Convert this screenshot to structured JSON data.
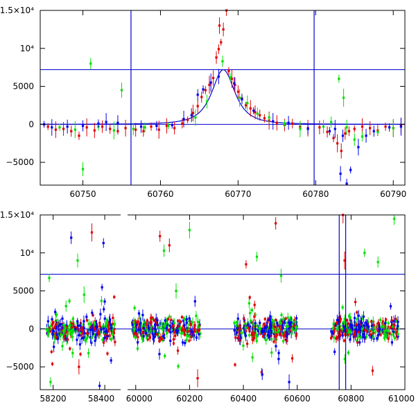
{
  "chart_data": [
    {
      "type": "scatter",
      "title": "",
      "xlabel": "",
      "ylabel": "",
      "xlim": [
        60744.5,
        60791.5
      ],
      "ylim": [
        -8000,
        15000
      ],
      "x_ticks": [
        {
          "value": 60750,
          "label": "60750"
        },
        {
          "value": 60760,
          "label": "60760"
        },
        {
          "value": 60770,
          "label": "60770"
        },
        {
          "value": 60780,
          "label": "60780"
        },
        {
          "value": 60790,
          "label": "60790"
        }
      ],
      "y_ticks": [
        {
          "value": -5000,
          "label": "−5000"
        },
        {
          "value": 0,
          "label": "0"
        },
        {
          "value": 5000,
          "label": "5000"
        },
        {
          "value": 10000,
          "label": "10⁴"
        },
        {
          "value": 15000,
          "label": "1.5×10⁴"
        }
      ],
      "hlines": [
        0,
        7200
      ],
      "vlines": [
        60756.2,
        60779.8
      ],
      "model": {
        "peak_x": 60768.1,
        "peak_y": 7200,
        "width": 2.2
      },
      "series": [
        {
          "name": "red",
          "color": "#e00000",
          "points": [
            [
              60745.5,
              -300
            ],
            [
              60746.5,
              -700
            ],
            [
              60747.5,
              -600
            ],
            [
              60748.5,
              -900
            ],
            [
              60749.5,
              -1500
            ],
            [
              60750.5,
              -400
            ],
            [
              60751.5,
              -800
            ],
            [
              60752.5,
              -300
            ],
            [
              60753.5,
              -600
            ],
            [
              60754.5,
              -900
            ],
            [
              60755.5,
              -500
            ],
            [
              60756.8,
              -700
            ],
            [
              60757.8,
              -900
            ],
            [
              60758.8,
              -300
            ],
            [
              60759.8,
              -700
            ],
            [
              60760.8,
              -200
            ],
            [
              60761.8,
              -500
            ],
            [
              60762.8,
              100
            ],
            [
              60763.5,
              600
            ],
            [
              60764.2,
              1500
            ],
            [
              60764.8,
              2400
            ],
            [
              60765.3,
              3600
            ],
            [
              60765.8,
              4500
            ],
            [
              60766.3,
              5200
            ],
            [
              60766.8,
              6100
            ],
            [
              60767.2,
              8800
            ],
            [
              60767.5,
              9900
            ],
            [
              60767.8,
              10800
            ],
            [
              60767.6,
              13000
            ],
            [
              60768.1,
              12500
            ],
            [
              60768.5,
              15000
            ],
            [
              60768.8,
              7000
            ],
            [
              60769.2,
              6000
            ],
            [
              60769.6,
              5200
            ],
            [
              60770.0,
              4300
            ],
            [
              60770.5,
              3400
            ],
            [
              60771.0,
              2500
            ],
            [
              60771.6,
              2100
            ],
            [
              60772.2,
              1600
            ],
            [
              60772.8,
              1200
            ],
            [
              60773.4,
              800
            ],
            [
              60774.0,
              500
            ],
            [
              60775.0,
              200
            ],
            [
              60776.0,
              -100
            ],
            [
              60777.0,
              100
            ],
            [
              60778.0,
              -300
            ],
            [
              60779.0,
              -500
            ],
            [
              60780.5,
              -400
            ],
            [
              60781.5,
              -1000
            ],
            [
              60782.3,
              -1800
            ],
            [
              60782.8,
              -2500
            ],
            [
              60783.3,
              -3500
            ],
            [
              60783.8,
              -1200
            ],
            [
              60784.3,
              -900
            ],
            [
              60785.0,
              -600
            ],
            [
              60786.0,
              -300
            ],
            [
              60787.0,
              -500
            ],
            [
              60788.0,
              -800
            ],
            [
              60789.0,
              -300
            ],
            [
              60790.0,
              -500
            ],
            [
              60791.0,
              -200
            ]
          ]
        },
        {
          "name": "green",
          "color": "#00e000",
          "points": [
            [
              60747.0,
              -400
            ],
            [
              60749.0,
              -700
            ],
            [
              60750.0,
              -5900
            ],
            [
              60751.0,
              8000
            ],
            [
              60752.0,
              -300
            ],
            [
              60754.0,
              -800
            ],
            [
              60755.0,
              4500
            ],
            [
              60756.5,
              -600
            ],
            [
              60758.0,
              -400
            ],
            [
              60761.0,
              -200
            ],
            [
              60764.5,
              900
            ],
            [
              60766.0,
              3000
            ],
            [
              60768.0,
              8300
            ],
            [
              60769.0,
              6200
            ],
            [
              60770.2,
              3500
            ],
            [
              60771.2,
              2800
            ],
            [
              60772.5,
              1400
            ],
            [
              60774.0,
              900
            ],
            [
              60776.0,
              100
            ],
            [
              60778.0,
              -600
            ],
            [
              60781.0,
              -300
            ],
            [
              60782.0,
              300
            ],
            [
              60783.0,
              6000
            ],
            [
              60783.6,
              3500
            ],
            [
              60784.0,
              -400
            ],
            [
              60785.0,
              -2000
            ],
            [
              60786.0,
              -1600
            ],
            [
              60788.0,
              -1000
            ],
            [
              60790.0,
              -500
            ]
          ]
        },
        {
          "name": "blue",
          "color": "#0000ee",
          "points": [
            [
              60745.0,
              0
            ],
            [
              60746.0,
              -400
            ],
            [
              60748.0,
              -300
            ],
            [
              60750.0,
              -200
            ],
            [
              60752.0,
              100
            ],
            [
              60753.0,
              300
            ],
            [
              60754.5,
              200
            ],
            [
              60757.5,
              -300
            ],
            [
              60759.5,
              -200
            ],
            [
              60761.5,
              -100
            ],
            [
              60763.0,
              700
            ],
            [
              60764.0,
              1200
            ],
            [
              60764.8,
              3900
            ],
            [
              60765.5,
              4600
            ],
            [
              60766.5,
              5500
            ],
            [
              60767.5,
              6300
            ],
            [
              60769.5,
              5400
            ],
            [
              60770.5,
              3300
            ],
            [
              60772.0,
              1800
            ],
            [
              60774.5,
              400
            ],
            [
              60776.5,
              200
            ],
            [
              60779.0,
              -600
            ],
            [
              60781.8,
              -900
            ],
            [
              60782.5,
              -600
            ],
            [
              60783.2,
              -6500
            ],
            [
              60783.5,
              -1500
            ],
            [
              60784.0,
              -7800
            ],
            [
              60784.5,
              -6000
            ],
            [
              60785.5,
              -3000
            ],
            [
              60786.5,
              -1500
            ],
            [
              60787.5,
              -900
            ],
            [
              60789.5,
              -400
            ],
            [
              60791.0,
              -300
            ]
          ]
        }
      ]
    },
    {
      "type": "scatter",
      "title": "",
      "xlabel": "",
      "ylabel": "",
      "xlim": [
        58150,
        61000
      ],
      "ylim": [
        -8000,
        15000
      ],
      "x_ticks": [
        {
          "value": 58200,
          "label": "58200"
        },
        {
          "value": 58400,
          "label": "58400"
        },
        {
          "value": 60000,
          "label": "60000"
        },
        {
          "value": 60200,
          "label": "60200"
        },
        {
          "value": 60400,
          "label": "60400"
        },
        {
          "value": 60600,
          "label": "60600"
        },
        {
          "value": 60800,
          "label": "60800"
        },
        {
          "value": 61000,
          "label": "61000"
        }
      ],
      "y_ticks": [
        {
          "value": -5000,
          "label": "−5000"
        },
        {
          "value": 0,
          "label": "0"
        },
        {
          "value": 5000,
          "label": "5000"
        },
        {
          "value": 10000,
          "label": "10⁴"
        },
        {
          "value": 15000,
          "label": "1.5×10⁴"
        }
      ],
      "hlines": [
        0,
        7200
      ],
      "vlines": [
        60756,
        60780
      ],
      "gap": {
        "after": 58440,
        "resume": 59980
      },
      "seasons": [
        [
          58175,
          58440
        ],
        [
          59985,
          60240
        ],
        [
          60365,
          60600
        ],
        [
          60725,
          60975
        ]
      ],
      "outliers": [
        [
          58185,
          6700,
          "green"
        ],
        [
          58190,
          -7000,
          "green"
        ],
        [
          58250,
          3000,
          "green"
        ],
        [
          58270,
          12000,
          "blue"
        ],
        [
          58295,
          9000,
          "green"
        ],
        [
          58300,
          -5000,
          "red"
        ],
        [
          58320,
          4500,
          "green"
        ],
        [
          58350,
          12700,
          "red"
        ],
        [
          58380,
          -7500,
          "blue"
        ],
        [
          58395,
          11300,
          "blue"
        ],
        [
          60090,
          12200,
          "red"
        ],
        [
          60105,
          10300,
          "green"
        ],
        [
          60125,
          11000,
          "red"
        ],
        [
          60150,
          5000,
          "green"
        ],
        [
          60200,
          13000,
          "green"
        ],
        [
          60230,
          -6500,
          "red"
        ],
        [
          60410,
          8500,
          "red"
        ],
        [
          60450,
          9500,
          "green"
        ],
        [
          60470,
          -6000,
          "blue"
        ],
        [
          60520,
          13900,
          "red"
        ],
        [
          60540,
          7000,
          "green"
        ],
        [
          60570,
          -7000,
          "blue"
        ],
        [
          60770,
          15000,
          "red"
        ],
        [
          60776,
          9000,
          "red"
        ],
        [
          60850,
          10000,
          "green"
        ],
        [
          60880,
          -5500,
          "red"
        ],
        [
          60900,
          8800,
          "green"
        ],
        [
          60960,
          14500,
          "green"
        ]
      ]
    }
  ]
}
